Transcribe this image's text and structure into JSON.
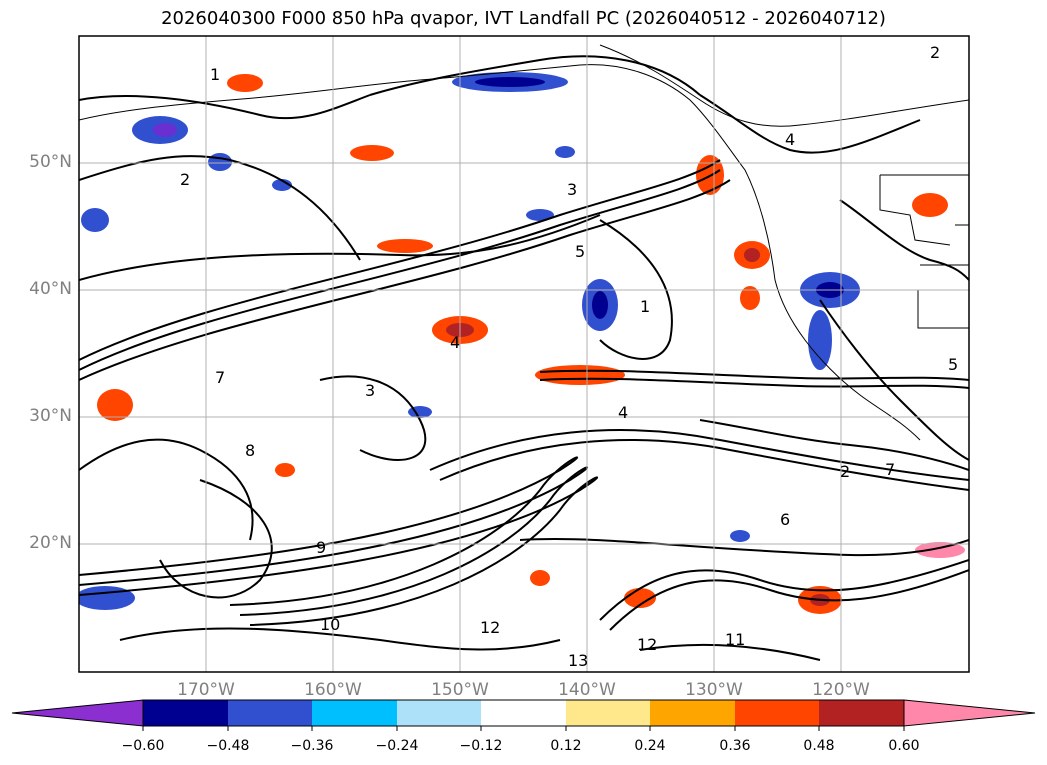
{
  "title": "2026040300 F000 850 hPa qvapor, IVT Landfall PC (2026040512 - 2026040712)",
  "map": {
    "lat_labels": [
      "50°N",
      "40°N",
      "30°N",
      "20°N"
    ],
    "lon_labels": [
      "170°W",
      "160°W",
      "150°W",
      "140°W",
      "130°W",
      "120°W"
    ],
    "contour_labels": [
      "2",
      "1",
      "3",
      "5",
      "4",
      "7",
      "6",
      "9",
      "8",
      "10",
      "11",
      "12",
      "13"
    ],
    "projection": "lat-lon",
    "extent": {
      "lon": [
        -180,
        -110
      ],
      "lat": [
        10,
        60
      ]
    },
    "grid": true
  },
  "colorbar": {
    "ticks": [
      "−0.60",
      "−0.48",
      "−0.36",
      "−0.24",
      "−0.12",
      "0.12",
      "0.24",
      "0.36",
      "0.48",
      "0.60"
    ],
    "colors": [
      "#8B2FD0",
      "#000090",
      "#3050D0",
      "#00BFFF",
      "#ADE1FA",
      "#FFFFFF",
      "#FFE88C",
      "#FFA500",
      "#FF4500",
      "#B22222",
      "#FF88AA"
    ]
  }
}
